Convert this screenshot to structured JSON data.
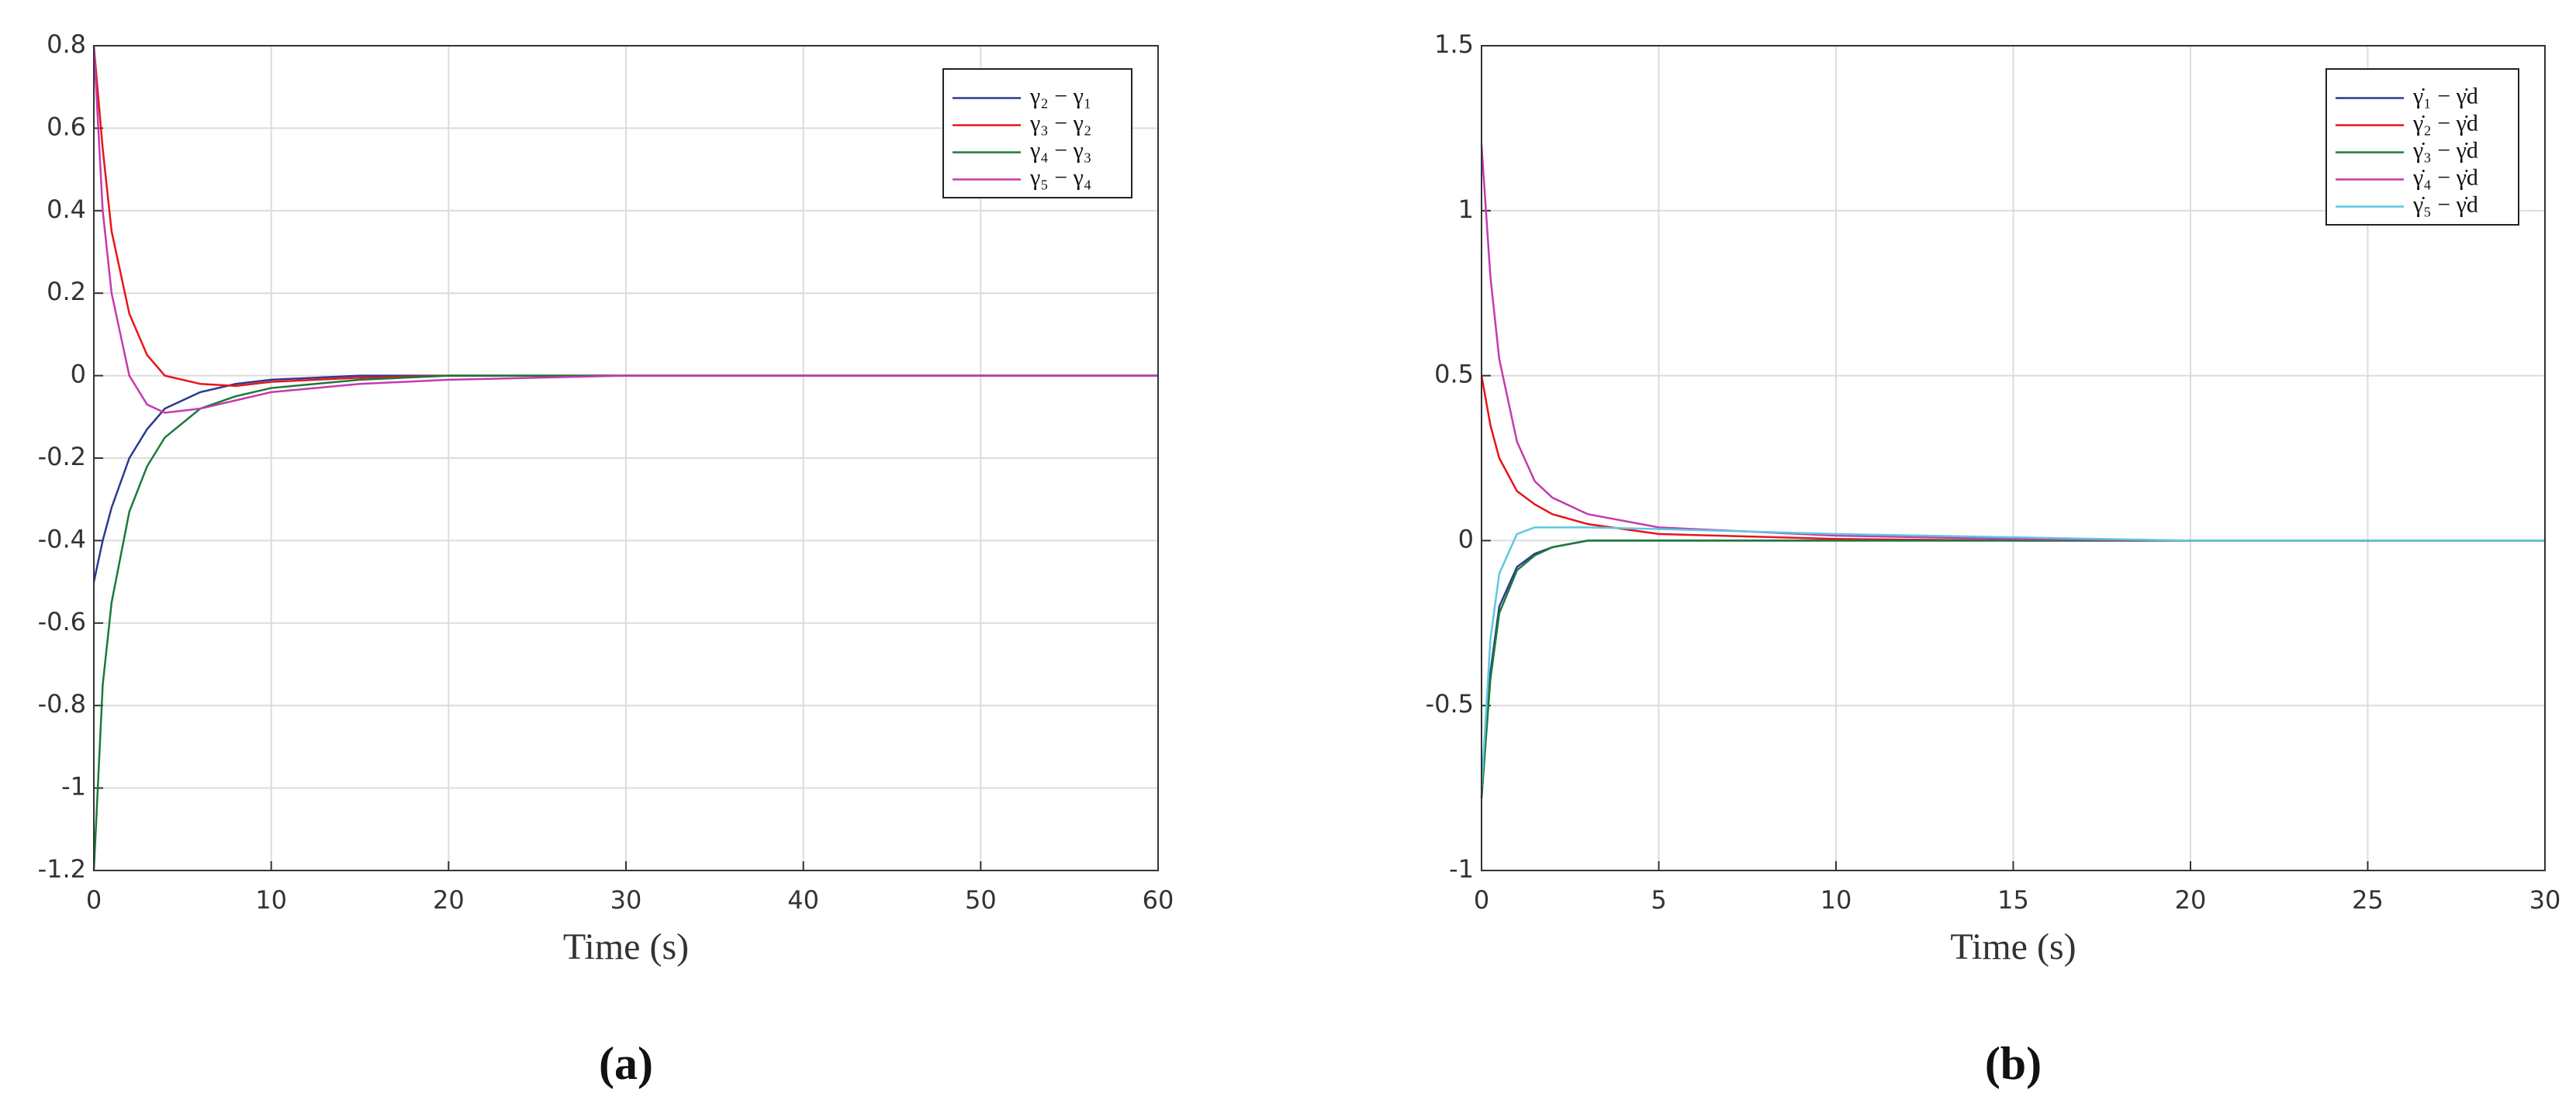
{
  "chart_data": [
    {
      "type": "line",
      "caption": "(a)",
      "xlabel": "Time (s)",
      "x": [
        0,
        0.5,
        1,
        2,
        3,
        4,
        6,
        8,
        10,
        15,
        20,
        30,
        60
      ],
      "series": [
        {
          "name": "γ₂ − γ₁",
          "color": "#2b3a8c",
          "values": [
            -0.5,
            -0.4,
            -0.32,
            -0.2,
            -0.13,
            -0.08,
            -0.04,
            -0.02,
            -0.01,
            0,
            0,
            0,
            0
          ]
        },
        {
          "name": "γ₃ − γ₂",
          "color": "#e8141b",
          "values": [
            0.8,
            0.55,
            0.35,
            0.15,
            0.05,
            0,
            -0.02,
            -0.025,
            -0.015,
            -0.005,
            0,
            0,
            0
          ]
        },
        {
          "name": "γ₄ − γ₃",
          "color": "#1a7a3a",
          "values": [
            -1.2,
            -0.75,
            -0.55,
            -0.33,
            -0.22,
            -0.15,
            -0.08,
            -0.05,
            -0.03,
            -0.01,
            0,
            0,
            0
          ]
        },
        {
          "name": "γ₅ − γ₄",
          "color": "#c43ab0",
          "values": [
            0.8,
            0.4,
            0.2,
            0,
            -0.07,
            -0.09,
            -0.08,
            -0.06,
            -0.04,
            -0.02,
            -0.01,
            0,
            0
          ]
        }
      ],
      "xlim": [
        0,
        60
      ],
      "xticks": [
        0,
        10,
        20,
        30,
        40,
        50,
        60
      ],
      "ylim": [
        -1.2,
        0.8
      ],
      "yticks": [
        -1.2,
        -1,
        -0.8,
        -0.6,
        -0.4,
        -0.2,
        0,
        0.2,
        0.4,
        0.6,
        0.8
      ],
      "grid": true,
      "legend": "upper right"
    },
    {
      "type": "line",
      "caption": "(b)",
      "xlabel": "Time (s)",
      "x": [
        0,
        0.25,
        0.5,
        1,
        1.5,
        2,
        3,
        5,
        10,
        15,
        20,
        30
      ],
      "series": [
        {
          "name": "γ̇₁ − γ̇d",
          "color": "#2b3a8c",
          "values": [
            -0.78,
            -0.4,
            -0.2,
            -0.08,
            -0.04,
            -0.02,
            0,
            0,
            0,
            0,
            0,
            0
          ]
        },
        {
          "name": "γ̇₂ − γ̇d",
          "color": "#e8141b",
          "values": [
            0.5,
            0.35,
            0.25,
            0.15,
            0.11,
            0.08,
            0.05,
            0.02,
            0.005,
            0,
            0,
            0
          ]
        },
        {
          "name": "γ̇₃ − γ̇d",
          "color": "#1a7a3a",
          "values": [
            -0.78,
            -0.42,
            -0.22,
            -0.09,
            -0.045,
            -0.02,
            0,
            0,
            0,
            0,
            0,
            0
          ]
        },
        {
          "name": "γ̇₄ − γ̇d",
          "color": "#c43ab0",
          "values": [
            1.2,
            0.8,
            0.55,
            0.3,
            0.18,
            0.13,
            0.08,
            0.04,
            0.015,
            0.005,
            0,
            0
          ]
        },
        {
          "name": "γ̇₅ − γ̇d",
          "color": "#5cc8e0",
          "values": [
            -0.75,
            -0.3,
            -0.1,
            0.02,
            0.04,
            0.04,
            0.04,
            0.035,
            0.02,
            0.01,
            0,
            0
          ]
        }
      ],
      "xlim": [
        0,
        30
      ],
      "xticks": [
        0,
        5,
        10,
        15,
        20,
        25,
        30
      ],
      "ylim": [
        -1,
        1.5
      ],
      "yticks": [
        -1,
        -0.5,
        0,
        0.5,
        1,
        1.5
      ],
      "grid": true,
      "legend": "upper right"
    }
  ]
}
